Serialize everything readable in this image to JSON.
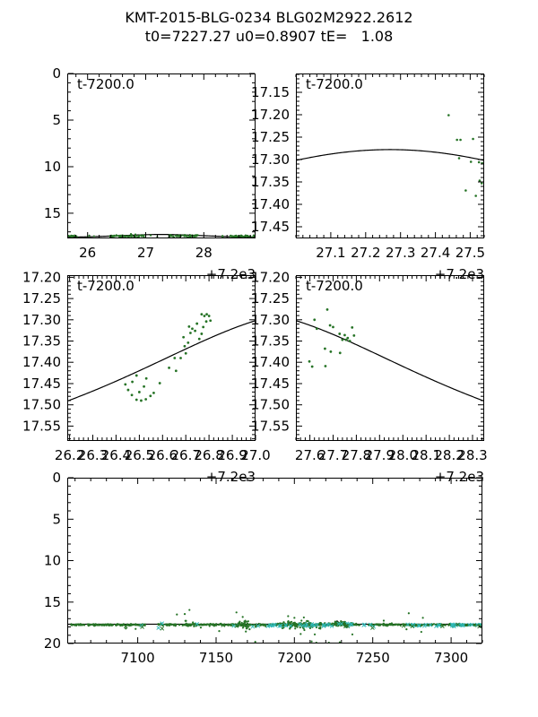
{
  "figure": {
    "title_line1": "KMT-2015-BLG-0234 BLG02M2922.2612",
    "title_line2": "t0=7227.27 u0=0.8907 tE=   1.08",
    "background": "#ffffff",
    "axis_color": "#000000",
    "model_color": "#000000",
    "data_green": "#267326",
    "data_cyan": "#2fb8b8"
  },
  "model": {
    "t0": 7227.27,
    "u0": 0.8907,
    "tE": 1.08,
    "baseline_mag": 17.668
  },
  "chart_data": {
    "type": "scatter",
    "title": "KMT-2015-BLG-0234 BLG02M2922.2612",
    "subtitle": "t0=7227.27 u0=0.8907 tE=   1.08",
    "grid": false,
    "panels": [
      {
        "name": "wide-zoom",
        "annotation": "t-7200.0",
        "offset_text": "+7.2e3",
        "x_add": 7200,
        "xlim": [
          25.65,
          28.89
        ],
        "ytop": 0,
        "ybot": 17.7,
        "xticks": [
          26,
          27,
          28
        ],
        "xtick_labels": [
          "26",
          "27",
          "28"
        ],
        "x_minor": 0.2,
        "yticks": [
          0,
          5,
          10,
          15
        ],
        "ytick_labels": [
          "0",
          "5",
          "10",
          "15"
        ],
        "y_minor": 1,
        "model_line": true,
        "marker_r": 1.1,
        "seed": 11,
        "points": [],
        "bands": [
          {
            "x0": 25.65,
            "x1": 25.82,
            "n": 18,
            "mean": 17.47,
            "sigma": 0.06
          },
          {
            "x0": 26.35,
            "x1": 26.98,
            "n": 60,
            "mean": 17.44,
            "sigma": 0.055
          },
          {
            "x0": 27.4,
            "x1": 27.9,
            "n": 50,
            "mean": 17.42,
            "sigma": 0.055
          },
          {
            "x0": 28.42,
            "x1": 28.89,
            "n": 45,
            "mean": 17.46,
            "sigma": 0.055
          },
          {
            "x0": 25.65,
            "x1": 28.89,
            "n": 18,
            "mean": 17.52,
            "sigma": 0.09
          }
        ]
      },
      {
        "name": "peak-zoom",
        "annotation": "t-7200.0",
        "offset_text": "+7.2e3",
        "x_add": 7200,
        "xlim": [
          27.0,
          27.54
        ],
        "ytop": 17.108,
        "ybot": 17.476,
        "xticks": [
          27.1,
          27.2,
          27.3,
          27.4,
          27.5
        ],
        "xtick_labels": [
          "27.1",
          "27.2",
          "27.3",
          "27.4",
          "27.5"
        ],
        "x_minor": 0.02,
        "yticks": [
          17.15,
          17.2,
          17.25,
          17.3,
          17.35,
          17.4,
          17.45
        ],
        "ytick_labels": [
          "17.15",
          "17.20",
          "17.25",
          "17.30",
          "17.35",
          "17.40",
          "17.45"
        ],
        "y_minor": 0.01,
        "model_line": true,
        "marker_r": 1.3,
        "seed": 21,
        "points": [
          [
            27.438,
            17.201
          ],
          [
            27.462,
            17.256
          ],
          [
            27.472,
            17.256
          ],
          [
            27.508,
            17.254
          ],
          [
            27.468,
            17.297
          ],
          [
            27.502,
            17.305
          ],
          [
            27.525,
            17.306
          ],
          [
            27.534,
            17.308
          ],
          [
            27.527,
            17.347
          ],
          [
            27.533,
            17.353
          ],
          [
            27.487,
            17.369
          ],
          [
            27.516,
            17.381
          ]
        ],
        "bands": []
      },
      {
        "name": "rising-side",
        "annotation": "t-7200.0",
        "offset_text": "+7.2e3",
        "x_add": 7200,
        "xlim": [
          26.19,
          27.0
        ],
        "ytop": 17.195,
        "ybot": 17.585,
        "xticks": [
          26.2,
          26.3,
          26.4,
          26.5,
          26.6,
          26.7,
          26.8,
          26.9,
          27.0
        ],
        "xtick_labels": [
          "26.2",
          "26.3",
          "26.4",
          "26.5",
          "26.6",
          "26.7",
          "26.8",
          "26.9",
          "27.0"
        ],
        "x_minor": 0.02,
        "yticks": [
          17.2,
          17.25,
          17.3,
          17.35,
          17.4,
          17.45,
          17.5,
          17.55
        ],
        "ytick_labels": [
          "17.20",
          "17.25",
          "17.30",
          "17.35",
          "17.40",
          "17.45",
          "17.50",
          "17.55"
        ],
        "y_minor": 0.01,
        "model_line": true,
        "marker_r": 1.4,
        "seed": 31,
        "points": [
          [
            26.44,
            17.452
          ],
          [
            26.452,
            17.465
          ],
          [
            26.468,
            17.477
          ],
          [
            26.488,
            17.488
          ],
          [
            26.508,
            17.49
          ],
          [
            26.528,
            17.487
          ],
          [
            26.548,
            17.479
          ],
          [
            26.5,
            17.47
          ],
          [
            26.52,
            17.457
          ],
          [
            26.562,
            17.472
          ],
          [
            26.488,
            17.431
          ],
          [
            26.53,
            17.438
          ],
          [
            26.588,
            17.449
          ],
          [
            26.47,
            17.446
          ],
          [
            26.628,
            17.413
          ],
          [
            26.652,
            17.39
          ],
          [
            26.678,
            17.39
          ],
          [
            26.7,
            17.379
          ],
          [
            26.658,
            17.42
          ],
          [
            26.71,
            17.354
          ],
          [
            26.69,
            17.341
          ],
          [
            26.728,
            17.321
          ],
          [
            26.74,
            17.326
          ],
          [
            26.714,
            17.316
          ],
          [
            26.748,
            17.309
          ],
          [
            26.768,
            17.333
          ],
          [
            26.775,
            17.317
          ],
          [
            26.788,
            17.304
          ],
          [
            26.78,
            17.291
          ],
          [
            26.768,
            17.287
          ],
          [
            26.79,
            17.287
          ],
          [
            26.8,
            17.291
          ],
          [
            26.806,
            17.302
          ],
          [
            26.758,
            17.345
          ],
          [
            26.72,
            17.331
          ],
          [
            26.695,
            17.362
          ]
        ],
        "bands": []
      },
      {
        "name": "falling-side",
        "annotation": "t-7200.0",
        "offset_text": "+7.2e3",
        "x_add": 7200,
        "xlim": [
          27.54,
          28.35
        ],
        "ytop": 17.195,
        "ybot": 17.585,
        "xticks": [
          27.6,
          27.7,
          27.8,
          27.9,
          28.0,
          28.1,
          28.2,
          28.3
        ],
        "xtick_labels": [
          "27.6",
          "27.7",
          "27.8",
          "27.9",
          "28.0",
          "28.1",
          "28.2",
          "28.3"
        ],
        "x_minor": 0.02,
        "yticks": [
          17.2,
          17.25,
          17.3,
          17.35,
          17.4,
          17.45,
          17.5,
          17.55
        ],
        "ytick_labels": [
          "17.20",
          "17.25",
          "17.30",
          "17.35",
          "17.40",
          "17.45",
          "17.50",
          "17.55"
        ],
        "y_minor": 0.01,
        "model_line": true,
        "marker_r": 1.4,
        "seed": 41,
        "points": [
          [
            27.598,
            17.398
          ],
          [
            27.61,
            17.41
          ],
          [
            27.63,
            17.321
          ],
          [
            27.675,
            17.276
          ],
          [
            27.687,
            17.313
          ],
          [
            27.7,
            17.317
          ],
          [
            27.665,
            17.368
          ],
          [
            27.69,
            17.375
          ],
          [
            27.667,
            17.409
          ],
          [
            27.73,
            17.378
          ],
          [
            27.728,
            17.333
          ],
          [
            27.75,
            17.336
          ],
          [
            27.74,
            17.347
          ],
          [
            27.756,
            17.347
          ],
          [
            27.763,
            17.343
          ],
          [
            27.772,
            17.35
          ],
          [
            27.782,
            17.318
          ],
          [
            27.79,
            17.337
          ],
          [
            27.62,
            17.3
          ]
        ],
        "bands": []
      },
      {
        "name": "full-season",
        "annotation": "",
        "offset_text": "",
        "x_add": 0,
        "xlim": [
          7055,
          7320
        ],
        "ytop": 0,
        "ybot": 20,
        "xticks": [
          7100,
          7150,
          7200,
          7250,
          7300
        ],
        "xtick_labels": [
          "7100",
          "7150",
          "7200",
          "7250",
          "7300"
        ],
        "x_minor": 10,
        "yticks": [
          0,
          5,
          10,
          15,
          20
        ],
        "ytick_labels": [
          "0",
          "5",
          "10",
          "15",
          "20"
        ],
        "y_minor": 1,
        "model_line": true,
        "marker_r": 1.1,
        "seed": 99,
        "points": [
          [
            7125,
            16.5
          ],
          [
            7130,
            16.45
          ],
          [
            7133,
            15.95
          ],
          [
            7152,
            18.5
          ],
          [
            7163,
            16.25
          ],
          [
            7167,
            16.8
          ],
          [
            7169,
            18.55
          ],
          [
            7175,
            19.8
          ],
          [
            7196,
            16.7
          ],
          [
            7200,
            16.9
          ],
          [
            7204,
            18.85
          ],
          [
            7211,
            19.75
          ],
          [
            7213,
            18.9
          ],
          [
            7214,
            19.9
          ],
          [
            7222,
            19.9
          ],
          [
            7229,
            19.85
          ],
          [
            7237,
            18.9
          ],
          [
            7273,
            16.35
          ],
          [
            7281,
            18.6
          ],
          [
            7282,
            16.9
          ]
        ],
        "bands": [
          {
            "x0": 7057,
            "x1": 7105,
            "n": 150,
            "mean": 17.75,
            "sigma": 0.05
          },
          {
            "x0": 7112,
            "x1": 7182,
            "n": 200,
            "mean": 17.74,
            "sigma": 0.06
          },
          {
            "x0": 7183,
            "x1": 7242,
            "n": 220,
            "mean": 17.72,
            "sigma": 0.09
          },
          {
            "x0": 7247,
            "x1": 7320,
            "n": 240,
            "mean": 17.74,
            "sigma": 0.05
          },
          {
            "x0": 7164,
            "x1": 7172,
            "n": 30,
            "mean": 17.7,
            "sigma": 0.3
          },
          {
            "x0": 7193,
            "x1": 7217,
            "n": 50,
            "mean": 17.7,
            "sigma": 0.3
          },
          {
            "x0": 7225,
            "x1": 7233,
            "n": 40,
            "mean": 17.55,
            "sigma": 0.1
          },
          {
            "x0": 7130,
            "x1": 7137,
            "n": 12,
            "mean": 17.65,
            "sigma": 0.22
          },
          {
            "x0": 7060,
            "x1": 7320,
            "n": 25,
            "mean": 17.9,
            "sigma": 0.22
          },
          {
            "x0": 7183,
            "x1": 7252,
            "n": 40,
            "mean": 17.78,
            "sigma": 0.08,
            "marker": "x",
            "color": "cyan"
          },
          {
            "x0": 7272,
            "x1": 7320,
            "n": 28,
            "mean": 17.77,
            "sigma": 0.07,
            "marker": "x",
            "color": "cyan"
          },
          {
            "x0": 7090,
            "x1": 7180,
            "n": 8,
            "mean": 17.85,
            "sigma": 0.12,
            "marker": "x",
            "color": "cyan"
          },
          {
            "x0": 7080,
            "x1": 7320,
            "n": 15,
            "mean": 17.88,
            "sigma": 0.15,
            "marker": "x",
            "color": "green"
          }
        ]
      }
    ]
  }
}
